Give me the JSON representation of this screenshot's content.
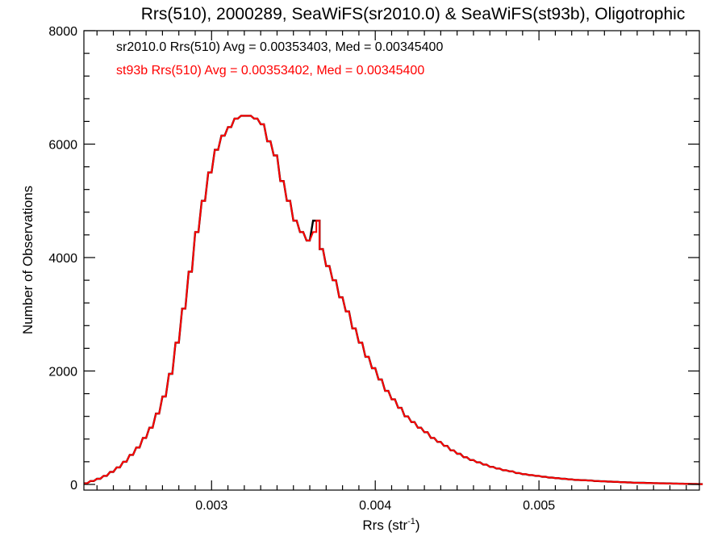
{
  "chart_data": {
    "type": "line",
    "title": "Rrs(510), 2000289, SeaWiFS(sr2010.0) & SeaWiFS(st93b), Oligotrophic",
    "xlabel": "Rrs (str",
    "xlabel_sup": "-1",
    "xlabel_close": ")",
    "ylabel": "Number of Observations",
    "xlim": [
      0.00222,
      0.00598
    ],
    "ylim": [
      -100,
      8000
    ],
    "xticks": [
      0.003,
      0.004,
      0.005
    ],
    "xtick_labels": [
      "0.003",
      "0.004",
      "0.005"
    ],
    "yticks": [
      0,
      2000,
      4000,
      6000,
      8000
    ],
    "ytick_labels": [
      "0",
      "2000",
      "4000",
      "6000",
      "8000"
    ],
    "bin_width": 2e-05,
    "stats": [
      {
        "text": "sr2010.0 Rrs(510) Avg = 0.00353403, Med = 0.00345400",
        "color": "#000000"
      },
      {
        "text": "st93b Rrs(510) Avg = 0.00353402, Med = 0.00345400",
        "color": "#ff0000"
      }
    ],
    "series": [
      {
        "color": "#000000",
        "x": [
          0.00222,
          0.00226,
          0.0023,
          0.00234,
          0.00238,
          0.00242,
          0.00246,
          0.0025,
          0.00254,
          0.00258,
          0.00262,
          0.00266,
          0.0027,
          0.00274,
          0.00278,
          0.00282,
          0.00286,
          0.0029,
          0.00294,
          0.00298,
          0.00302,
          0.00306,
          0.0031,
          0.00314,
          0.00318,
          0.00322,
          0.00326,
          0.0033,
          0.00334,
          0.00338,
          0.00342,
          0.00346,
          0.0035,
          0.00354,
          0.00358,
          0.00362,
          0.00364,
          0.00366,
          0.0037,
          0.00374,
          0.00378,
          0.00382,
          0.00386,
          0.0039,
          0.00394,
          0.00398,
          0.00402,
          0.00406,
          0.0041,
          0.00414,
          0.00418,
          0.00422,
          0.00426,
          0.0043,
          0.00434,
          0.00438,
          0.00442,
          0.00446,
          0.0045,
          0.00454,
          0.00458,
          0.00462,
          0.00466,
          0.0047,
          0.00474,
          0.00478,
          0.00482,
          0.00486,
          0.0049,
          0.00494,
          0.00498,
          0.00502,
          0.00506,
          0.0051,
          0.00514,
          0.00518,
          0.00522,
          0.00526,
          0.0053,
          0.00534,
          0.00538,
          0.00542,
          0.00546,
          0.0055,
          0.00554,
          0.00558,
          0.00562,
          0.00566,
          0.0057,
          0.00574,
          0.00578,
          0.00582,
          0.00586,
          0.0059,
          0.00594,
          0.00598
        ],
        "y": [
          20,
          60,
          100,
          150,
          220,
          300,
          400,
          520,
          650,
          820,
          1000,
          1250,
          1550,
          1950,
          2500,
          3100,
          3750,
          4450,
          5000,
          5500,
          5900,
          6150,
          6300,
          6450,
          6500,
          6500,
          6450,
          6350,
          6050,
          5800,
          5350,
          5000,
          4650,
          4450,
          4300,
          4650,
          4650,
          4150,
          3850,
          3600,
          3300,
          3050,
          2750,
          2500,
          2250,
          2050,
          1850,
          1650,
          1500,
          1350,
          1200,
          1100,
          1000,
          920,
          820,
          750,
          680,
          600,
          540,
          480,
          430,
          390,
          350,
          310,
          280,
          250,
          230,
          200,
          180,
          165,
          150,
          135,
          120,
          110,
          100,
          90,
          80,
          75,
          70,
          60,
          55,
          50,
          45,
          40,
          35,
          30,
          28,
          25,
          22,
          20,
          18,
          15,
          12,
          10,
          8,
          5
        ]
      },
      {
        "color": "#ff0000",
        "x": [
          0.00222,
          0.00226,
          0.0023,
          0.00234,
          0.00238,
          0.00242,
          0.00246,
          0.0025,
          0.00254,
          0.00258,
          0.00262,
          0.00266,
          0.0027,
          0.00274,
          0.00278,
          0.00282,
          0.00286,
          0.0029,
          0.00294,
          0.00298,
          0.00302,
          0.00306,
          0.0031,
          0.00314,
          0.00318,
          0.00322,
          0.00326,
          0.0033,
          0.00334,
          0.00338,
          0.00342,
          0.00346,
          0.0035,
          0.00354,
          0.00358,
          0.00362,
          0.00364,
          0.00366,
          0.0037,
          0.00374,
          0.00378,
          0.00382,
          0.00386,
          0.0039,
          0.00394,
          0.00398,
          0.00402,
          0.00406,
          0.0041,
          0.00414,
          0.00418,
          0.00422,
          0.00426,
          0.0043,
          0.00434,
          0.00438,
          0.00442,
          0.00446,
          0.0045,
          0.00454,
          0.00458,
          0.00462,
          0.00466,
          0.0047,
          0.00474,
          0.00478,
          0.00482,
          0.00486,
          0.0049,
          0.00494,
          0.00498,
          0.00502,
          0.00506,
          0.0051,
          0.00514,
          0.00518,
          0.00522,
          0.00526,
          0.0053,
          0.00534,
          0.00538,
          0.00542,
          0.00546,
          0.0055,
          0.00554,
          0.00558,
          0.00562,
          0.00566,
          0.0057,
          0.00574,
          0.00578,
          0.00582,
          0.00586,
          0.0059,
          0.00594,
          0.00598
        ],
        "y": [
          20,
          60,
          100,
          150,
          220,
          300,
          400,
          520,
          650,
          820,
          1000,
          1250,
          1550,
          1950,
          2500,
          3100,
          3750,
          4450,
          5000,
          5500,
          5900,
          6150,
          6300,
          6450,
          6500,
          6500,
          6450,
          6350,
          6050,
          5800,
          5350,
          5000,
          4650,
          4450,
          4300,
          4450,
          4650,
          4150,
          3850,
          3600,
          3300,
          3050,
          2750,
          2500,
          2250,
          2050,
          1850,
          1650,
          1500,
          1350,
          1200,
          1100,
          1000,
          920,
          820,
          750,
          680,
          600,
          540,
          480,
          430,
          390,
          350,
          310,
          280,
          250,
          230,
          200,
          180,
          165,
          150,
          135,
          120,
          110,
          100,
          90,
          80,
          75,
          70,
          60,
          55,
          50,
          45,
          40,
          35,
          30,
          28,
          25,
          22,
          20,
          18,
          15,
          12,
          10,
          8,
          5
        ]
      }
    ]
  }
}
